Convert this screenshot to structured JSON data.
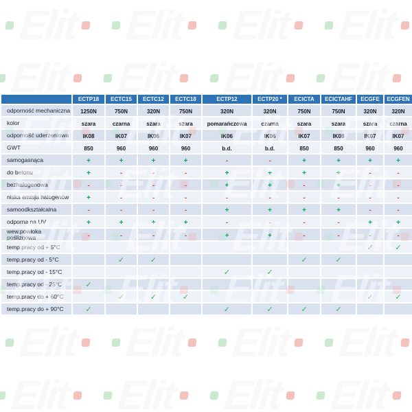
{
  "watermark": {
    "text": "Elit",
    "dot_left_color": "green",
    "dot_right_color": "red"
  },
  "table": {
    "columns": [
      "ECTP18",
      "ECTC15",
      "ECTC12",
      "ECTC18",
      "ECTP12",
      "ECTP20 *",
      "ECICTA",
      "ECICTAHF",
      "ECGFE",
      "ECGFEN"
    ],
    "rows": [
      {
        "label": "odporność mechaniczna",
        "type": "text",
        "values": [
          "1250N",
          "750N",
          "320N",
          "750N",
          "320N",
          "320N",
          "750N",
          "750N",
          "320N",
          "320N"
        ]
      },
      {
        "label": "kolor",
        "type": "text",
        "values": [
          "szara",
          "czarna",
          "szara",
          "szara",
          "pomarańczowa",
          "czarna",
          "szara",
          "szara",
          "szara",
          "czarna"
        ]
      },
      {
        "label": "odporność uderzeniowa",
        "type": "text",
        "values": [
          "IK08",
          "IK07",
          "IK06",
          "IK07",
          "IK06",
          "IK06",
          "IK07",
          "IK08",
          "IK07",
          "IK07"
        ]
      },
      {
        "label": "GWT",
        "type": "text",
        "values": [
          "850",
          "960",
          "960",
          "960",
          "b.d.",
          "b.d.",
          "850",
          "850",
          "960",
          "960"
        ]
      },
      {
        "label": "samogasnąca",
        "type": "pm",
        "values": [
          "+",
          "+",
          "+",
          "+",
          "-",
          "-",
          "+",
          "+",
          "+",
          "+"
        ]
      },
      {
        "label": "do betonu",
        "type": "pm",
        "values": [
          "+",
          "-",
          "-",
          "-",
          "+",
          "+",
          "+",
          "+",
          "-",
          "-"
        ]
      },
      {
        "label": "bezhalogenowa",
        "type": "pm",
        "values": [
          "-",
          "-",
          "-",
          "-",
          "+",
          "+",
          "-",
          "+",
          "-",
          "-"
        ]
      },
      {
        "label": "niska emisja halogenów",
        "type": "pm",
        "values": [
          "+",
          "-",
          "-",
          "-",
          "-",
          "-",
          "-",
          "-",
          "-",
          "-"
        ]
      },
      {
        "label": "samoodkształcalna",
        "type": "pm",
        "values": [
          "-",
          "-",
          "-",
          "-",
          "+",
          "+",
          "+",
          "+",
          "-",
          "-"
        ]
      },
      {
        "label": "odporna na UV",
        "type": "pm",
        "values": [
          "+",
          "+",
          "+",
          "+",
          "-",
          "-",
          "-",
          "-",
          "+",
          "+"
        ]
      },
      {
        "label": "wew.powłoka poślizgowa",
        "type": "pm",
        "values": [
          "-",
          "-",
          "-",
          "-",
          "+",
          "+",
          "-",
          "-",
          "-",
          "-"
        ]
      },
      {
        "label": "temp.pracy od + 5°C",
        "type": "check",
        "values": [
          "",
          "",
          "",
          "",
          "",
          "",
          "",
          "",
          "✓",
          "✓"
        ]
      },
      {
        "label": "temp.pracy od - 5°C",
        "type": "check",
        "values": [
          "",
          "✓",
          "✓",
          "",
          "",
          "",
          "✓",
          "✓",
          "",
          ""
        ]
      },
      {
        "label": "temp.pracy od - 15°C",
        "type": "check",
        "values": [
          "",
          "",
          "",
          "",
          "✓",
          "✓",
          "",
          "",
          "",
          ""
        ]
      },
      {
        "label": "temp.pracy od - 25°C",
        "type": "check",
        "values": [
          "✓",
          "",
          "",
          "",
          "",
          "",
          "",
          "",
          "",
          ""
        ]
      },
      {
        "label": "temp.pracy do + 60°C",
        "type": "check",
        "values": [
          "",
          "✓",
          "✓",
          "✓",
          "",
          "",
          "",
          "",
          "✓",
          "✓"
        ]
      },
      {
        "label": "temp.pracy do + 90°C",
        "type": "check",
        "values": [
          "✓",
          "",
          "",
          "",
          "✓",
          "✓",
          "✓",
          "✓",
          "",
          ""
        ]
      }
    ],
    "colors": {
      "header_bg": "#2e72b8",
      "header_text": "#ffffff",
      "stripe_dark": "#d9e1ef",
      "stripe_light": "#edf1f8",
      "plus": "#00a651",
      "minus": "#d9453c",
      "check": "#3cae5e",
      "label_text": "#26262b",
      "value_text": "#14161d"
    }
  }
}
